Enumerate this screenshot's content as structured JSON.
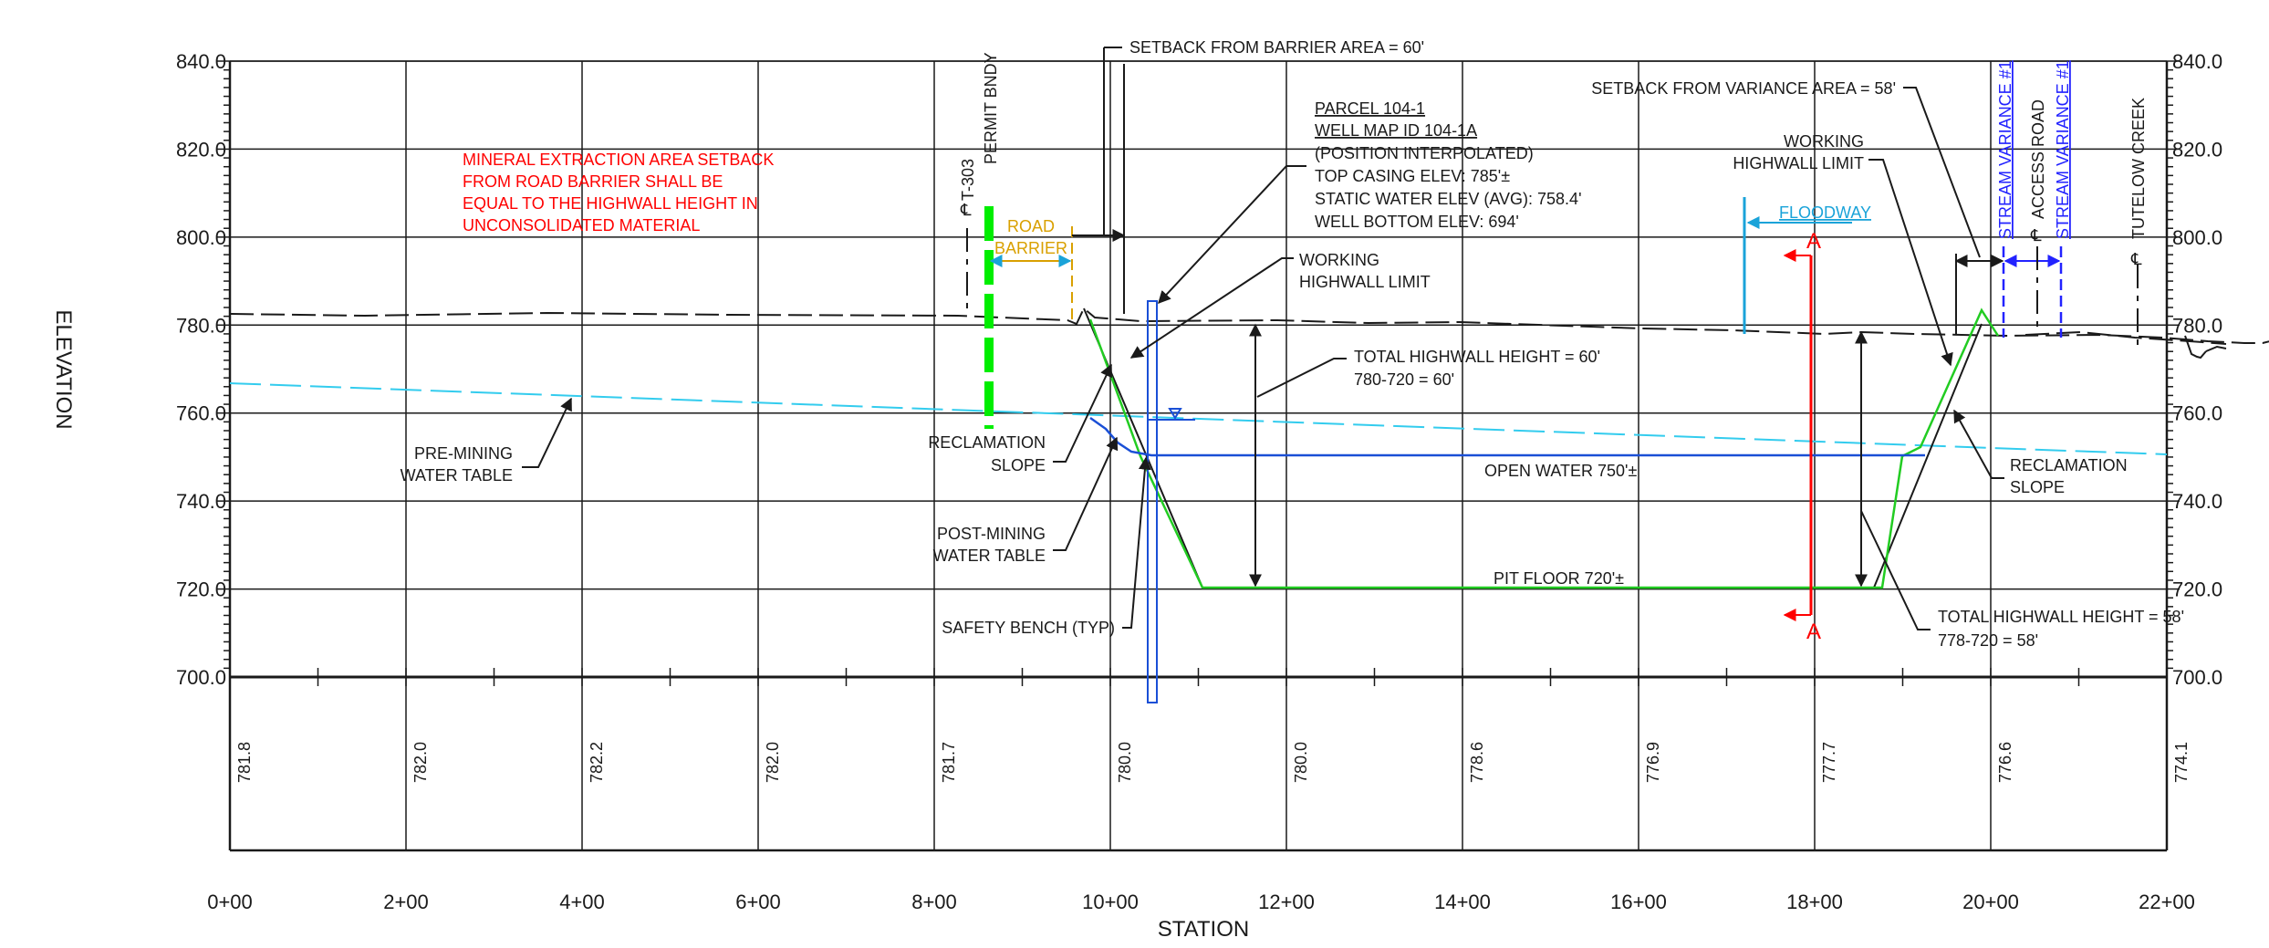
{
  "axis": {
    "left_title": "ELEVATION",
    "bottom_title": "STATION",
    "elevation_ticks": [
      "840.0",
      "820.0",
      "800.0",
      "780.0",
      "760.0",
      "740.0",
      "720.0",
      "700.0"
    ],
    "station_ticks": [
      "0+00",
      "2+00",
      "4+00",
      "6+00",
      "8+00",
      "10+00",
      "12+00",
      "14+00",
      "16+00",
      "18+00",
      "20+00",
      "22+00"
    ],
    "ground_elevations": [
      "781.8",
      "782.0",
      "782.2",
      "782.0",
      "781.7",
      "780.0",
      "780.0",
      "778.6",
      "776.9",
      "777.7",
      "776.6",
      "774.1"
    ]
  },
  "notes": {
    "setback_red": [
      "MINERAL EXTRACTION AREA SETBACK",
      "FROM ROAD BARRIER SHALL BE",
      "EQUAL TO THE HIGHWALL HEIGHT IN",
      "UNCONSOLIDATED MATERIAL"
    ],
    "setback_barrier": "SETBACK FROM BARRIER AREA = 60'",
    "setback_variance": "SETBACK FROM VARIANCE AREA = 58'",
    "t303": "T-303",
    "permit_bndy": "PERMIT BNDY",
    "road_barrier": [
      "ROAD",
      "BARRIER"
    ],
    "parcel": [
      "PARCEL 104-1",
      "WELL MAP ID 104-1A",
      "(POSITION INTERPOLATED)",
      "TOP CASING ELEV: 785'±",
      "STATIC WATER ELEV (AVG): 758.4'",
      "WELL BOTTOM ELEV: 694'"
    ],
    "working_highwall_left": [
      "WORKING",
      "HIGHWALL LIMIT"
    ],
    "working_highwall_right": [
      "WORKING",
      "HIGHWALL LIMIT"
    ],
    "total_highwall_left": [
      "TOTAL HIGHWALL HEIGHT = 60'",
      "780-720 = 60'"
    ],
    "total_highwall_right": [
      "TOTAL HIGHWALL HEIGHT = 58'",
      "778-720 = 58'"
    ],
    "pre_mining": [
      "PRE-MINING",
      "WATER TABLE"
    ],
    "reclamation_left": [
      "RECLAMATION",
      "SLOPE"
    ],
    "reclamation_right": [
      "RECLAMATION",
      "SLOPE"
    ],
    "post_mining": [
      "POST-MINING",
      "WATER TABLE"
    ],
    "safety_bench": "SAFETY BENCH (TYP)",
    "open_water": "OPEN WATER 750'±",
    "pit_floor": "PIT FLOOR 720'±",
    "floodway": "FLOODWAY",
    "section_a": "A",
    "stream_variance": "STREAM VARIANCE #1",
    "access_road": "ACCESS ROAD",
    "tutelow_creek": "TUTELOW CREEK"
  },
  "colors": {
    "grid": "#1a1a1a",
    "green": "#22cc22",
    "permit": "#00ee00",
    "water": "#1a4fd6",
    "watertable": "#33ccee",
    "red": "#ff0000",
    "orange": "#d9a000",
    "cyan": "#1aa3d9",
    "variance": "#2222ff"
  }
}
